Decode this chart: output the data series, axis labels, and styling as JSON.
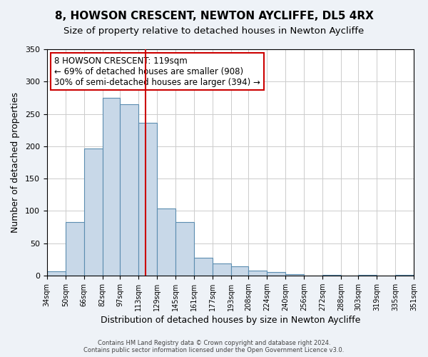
{
  "title": "8, HOWSON CRESCENT, NEWTON AYCLIFFE, DL5 4RX",
  "subtitle": "Size of property relative to detached houses in Newton Aycliffe",
  "xlabel": "Distribution of detached houses by size in Newton Aycliffe",
  "ylabel": "Number of detached properties",
  "bar_values": [
    6,
    83,
    196,
    275,
    265,
    236,
    104,
    83,
    27,
    19,
    14,
    7,
    5,
    2,
    0,
    1,
    0,
    1,
    0,
    1
  ],
  "bin_edges": [
    34,
    50,
    66,
    82,
    97,
    113,
    129,
    145,
    161,
    177,
    193,
    208,
    224,
    240,
    256,
    272,
    288,
    303,
    319,
    335,
    351
  ],
  "tick_labels": [
    "34sqm",
    "50sqm",
    "66sqm",
    "82sqm",
    "97sqm",
    "113sqm",
    "129sqm",
    "145sqm",
    "161sqm",
    "177sqm",
    "193sqm",
    "208sqm",
    "224sqm",
    "240sqm",
    "256sqm",
    "272sqm",
    "288sqm",
    "303sqm",
    "319sqm",
    "335sqm",
    "351sqm"
  ],
  "bar_color": "#c8d8e8",
  "bar_edge_color": "#5b8db0",
  "vline_x": 119,
  "vline_color": "#cc0000",
  "ylim": [
    0,
    350
  ],
  "yticks": [
    0,
    50,
    100,
    150,
    200,
    250,
    300,
    350
  ],
  "annotation_title": "8 HOWSON CRESCENT: 119sqm",
  "annotation_line1": "← 69% of detached houses are smaller (908)",
  "annotation_line2": "30% of semi-detached houses are larger (394) →",
  "annotation_box_color": "#ffffff",
  "annotation_box_edgecolor": "#cc0000",
  "footer_line1": "Contains HM Land Registry data © Crown copyright and database right 2024.",
  "footer_line2": "Contains public sector information licensed under the Open Government Licence v3.0.",
  "background_color": "#eef2f7",
  "plot_background": "#ffffff",
  "title_fontsize": 11,
  "subtitle_fontsize": 9.5
}
